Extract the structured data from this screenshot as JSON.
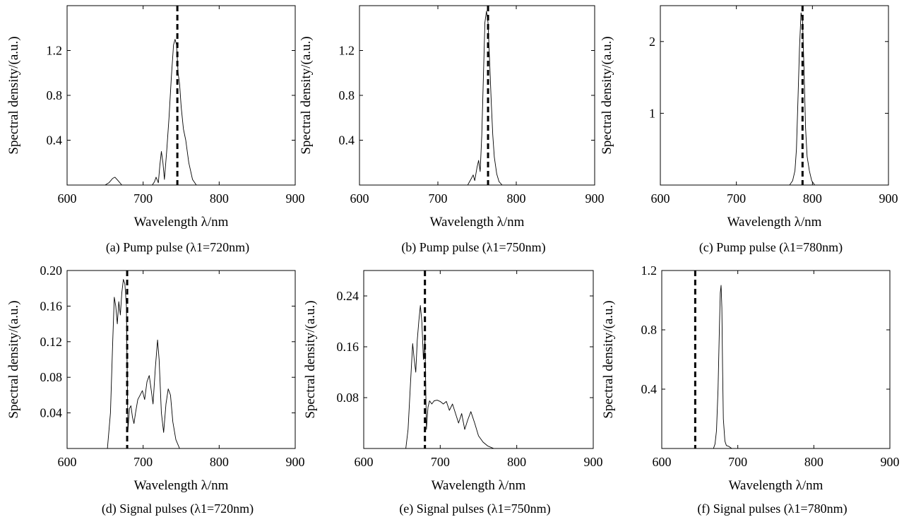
{
  "chart_data": [
    {
      "type": "line",
      "panel": "a",
      "caption": "(a) Pump pulse (λ1=720nm)",
      "xlabel": "Wavelength λ/nm",
      "ylabel": "Spectral density/(a.u.)",
      "xlim": [
        600,
        900
      ],
      "ylim": [
        0,
        1.6
      ],
      "xticks": [
        600,
        700,
        800,
        900
      ],
      "yticks": [
        0.4,
        0.8,
        1.2
      ],
      "marker_x": 745,
      "series": [
        {
          "x": [
            600,
            650,
            655,
            660,
            663,
            667,
            672,
            700,
            712,
            715,
            717,
            720,
            722,
            724,
            726,
            728,
            731,
            734,
            737,
            740,
            742,
            744,
            746,
            748,
            750,
            753,
            756,
            760,
            765,
            770,
            900
          ],
          "y": [
            0,
            0,
            0.02,
            0.06,
            0.07,
            0.04,
            0,
            0,
            0,
            0.03,
            0.07,
            0.02,
            0.18,
            0.3,
            0.2,
            0.05,
            0.3,
            0.6,
            0.95,
            1.25,
            1.3,
            1.25,
            1.0,
            0.9,
            0.7,
            0.5,
            0.4,
            0.2,
            0.05,
            0,
            0
          ]
        }
      ]
    },
    {
      "type": "line",
      "panel": "b",
      "caption": "(b) Pump pulse (λ1=750nm)",
      "xlabel": "Wavelength λ/nm",
      "ylabel": "Spectral density/(a.u.)",
      "xlim": [
        600,
        900
      ],
      "ylim": [
        0,
        1.6
      ],
      "xticks": [
        600,
        700,
        800,
        900
      ],
      "yticks": [
        0.4,
        0.8,
        1.2
      ],
      "marker_x": 764,
      "series": [
        {
          "x": [
            600,
            738,
            742,
            745,
            747,
            750,
            752,
            754,
            756,
            758,
            760,
            762,
            764,
            766,
            768,
            770,
            772,
            775,
            778,
            782,
            900
          ],
          "y": [
            0,
            0,
            0.05,
            0.09,
            0.04,
            0.16,
            0.22,
            0.12,
            0.45,
            0.95,
            1.45,
            1.55,
            1.45,
            1.1,
            0.75,
            0.45,
            0.25,
            0.1,
            0.03,
            0,
            0
          ]
        }
      ]
    },
    {
      "type": "line",
      "panel": "c",
      "caption": "(c) Pump pulse (λ1=780nm)",
      "xlabel": "Wavelength λ/nm",
      "ylabel": "Spectral density/(a.u.)",
      "xlim": [
        600,
        900
      ],
      "ylim": [
        0,
        2.5
      ],
      "xticks": [
        600,
        700,
        800,
        900
      ],
      "yticks": [
        1,
        2
      ],
      "marker_x": 787,
      "series": [
        {
          "x": [
            600,
            770,
            774,
            777,
            779,
            781,
            783,
            785,
            787,
            789,
            791,
            793,
            796,
            799,
            803,
            900
          ],
          "y": [
            0,
            0,
            0.06,
            0.2,
            0.5,
            1.2,
            1.9,
            2.4,
            2.3,
            1.6,
            0.8,
            0.4,
            0.2,
            0.06,
            0,
            0
          ]
        }
      ]
    },
    {
      "type": "line",
      "panel": "d",
      "caption": "(d) Signal pulses (λ1=720nm)",
      "xlabel": "Wavelength λ/nm",
      "ylabel": "Spectral density/(a.u.)",
      "xlim": [
        600,
        900
      ],
      "ylim": [
        0,
        0.2
      ],
      "xticks": [
        600,
        700,
        800,
        900
      ],
      "yticks": [
        0.04,
        0.08,
        0.12,
        0.16,
        0.2
      ],
      "ytick_labels": [
        "0.04",
        "0.08",
        "0.12",
        "0.16",
        "0.20"
      ],
      "marker_x": 679,
      "series": [
        {
          "x": [
            600,
            653,
            657,
            660,
            662,
            664,
            666,
            668,
            670,
            672,
            674,
            676,
            678,
            680,
            682,
            684,
            686,
            688,
            690,
            693,
            696,
            699,
            702,
            705,
            708,
            710,
            713,
            716,
            719,
            721,
            724,
            727,
            730,
            733,
            736,
            739,
            743,
            748,
            900
          ],
          "y": [
            0,
            0,
            0.04,
            0.12,
            0.17,
            0.16,
            0.14,
            0.165,
            0.15,
            0.175,
            0.19,
            0.185,
            0.16,
            0.02,
            0.045,
            0.048,
            0.035,
            0.028,
            0.04,
            0.055,
            0.06,
            0.065,
            0.055,
            0.075,
            0.082,
            0.07,
            0.05,
            0.09,
            0.122,
            0.1,
            0.04,
            0.018,
            0.05,
            0.067,
            0.06,
            0.03,
            0.01,
            0,
            0
          ]
        }
      ]
    },
    {
      "type": "line",
      "panel": "e",
      "caption": "(e) Signal pulses (λ1=750nm)",
      "xlabel": "Wavelength λ/nm",
      "ylabel": "Spectral density/(a.u.)",
      "xlim": [
        600,
        900
      ],
      "ylim": [
        0,
        0.28
      ],
      "xticks": [
        600,
        700,
        800,
        900
      ],
      "yticks": [
        0.08,
        0.16,
        0.24
      ],
      "marker_x": 680,
      "series": [
        {
          "x": [
            600,
            655,
            658,
            661,
            664,
            666,
            668,
            670,
            672,
            674,
            676,
            678,
            680,
            682,
            684,
            686,
            689,
            692,
            696,
            700,
            704,
            708,
            712,
            716,
            720,
            724,
            728,
            732,
            736,
            740,
            745,
            750,
            756,
            762,
            770,
            900
          ],
          "y": [
            0,
            0,
            0.03,
            0.1,
            0.165,
            0.14,
            0.12,
            0.17,
            0.2,
            0.225,
            0.2,
            0.14,
            0.17,
            0.03,
            0.065,
            0.075,
            0.07,
            0.075,
            0.076,
            0.074,
            0.07,
            0.074,
            0.06,
            0.07,
            0.055,
            0.04,
            0.055,
            0.03,
            0.045,
            0.058,
            0.04,
            0.02,
            0.01,
            0.004,
            0,
            0
          ]
        }
      ]
    },
    {
      "type": "line",
      "panel": "f",
      "caption": "(f) Signal pulses (λ1=780nm)",
      "xlabel": "Wavelength λ/nm",
      "ylabel": "Spectral density/(a.u.)",
      "xlim": [
        600,
        900
      ],
      "ylim": [
        0,
        1.2
      ],
      "xticks": [
        600,
        700,
        800,
        900
      ],
      "yticks": [
        0.4,
        0.8,
        1.2
      ],
      "marker_x": 644,
      "series": [
        {
          "x": [
            600,
            668,
            670,
            672,
            674,
            676,
            677,
            678,
            679,
            680,
            681,
            683,
            685,
            688,
            692,
            900
          ],
          "y": [
            0,
            0,
            0.03,
            0.12,
            0.4,
            0.85,
            1.05,
            1.1,
            0.95,
            0.55,
            0.2,
            0.05,
            0.02,
            0.015,
            0,
            0
          ]
        }
      ]
    }
  ]
}
